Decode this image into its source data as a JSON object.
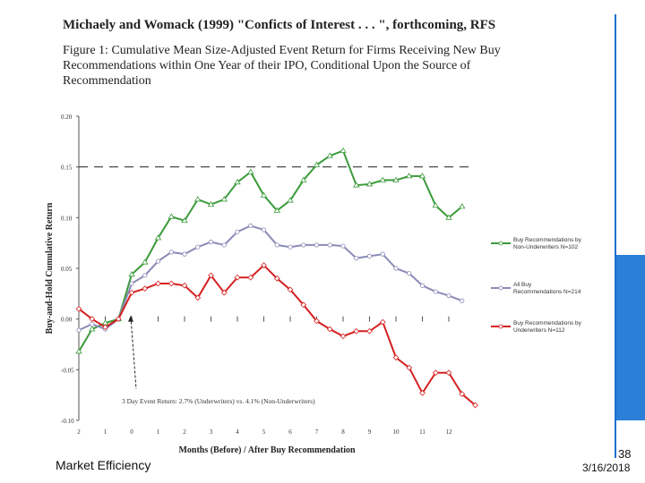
{
  "slide": {
    "title": "Michaely and Womack (1999) \"Conficts of Interest . . . \", forthcoming, RFS",
    "caption": "Figure 1: Cumulative Mean Size-Adjusted Event Return for Firms Receiving New Buy Recommendations within One Year of their IPO, Conditional Upon the Source of Recommendation",
    "footer_left": "Market Efficiency",
    "page_number": "38",
    "date": "3/16/2018"
  },
  "colors": {
    "accent": "#2b7fd6",
    "green": "#3a9a3a",
    "blue": "#8a8ab8",
    "red": "#d42020"
  },
  "chart_data": {
    "type": "line",
    "xlabel": "Months (Before) / After Buy Recommendation",
    "ylabel": "Buy-and-Hold Cumulative Return",
    "ylim": [
      -0.1,
      0.2
    ],
    "yticks": [
      -0.1,
      -0.05,
      0.0,
      0.05,
      0.1,
      0.15,
      0.2
    ],
    "ytick_labels": [
      "-0.10",
      "-0.05",
      "0.00",
      "0.05",
      "0.10",
      "0.15",
      "0.20"
    ],
    "xlim": [
      -2,
      12.5
    ],
    "x_ticks": [
      -2,
      -1,
      0,
      1,
      2,
      3,
      4,
      5,
      6,
      7,
      8,
      9,
      10,
      11,
      12
    ],
    "x_tick_labels": [
      "2",
      "1",
      "0",
      "1",
      "2",
      "3",
      "4",
      "5",
      "6",
      "7",
      "8",
      "9",
      "10",
      "11",
      "12"
    ],
    "reference_line": 0.15,
    "annotation": "3 Day Event Return: 2.7% (Underwriters) vs. 4.1% (Non-Underwriters)",
    "annotation_x": 0,
    "x": [
      -2,
      -1.5,
      -1,
      -0.5,
      0,
      0.5,
      1,
      1.5,
      2,
      2.5,
      3,
      3.5,
      4,
      4.5,
      5,
      5.5,
      6,
      6.5,
      7,
      7.5,
      8,
      8.5,
      9,
      9.5,
      10,
      10.5,
      11,
      11.5,
      12,
      12.5
    ],
    "series": [
      {
        "name": "Buy Recommendations by Non-Underwriters N=102",
        "color": "#3a9a3a",
        "marker": "triangle",
        "values": [
          -0.032,
          -0.01,
          -0.004,
          0.0,
          0.044,
          0.056,
          0.08,
          0.101,
          0.097,
          0.118,
          0.113,
          0.118,
          0.135,
          0.145,
          0.122,
          0.107,
          0.117,
          0.137,
          0.152,
          0.161,
          0.166,
          0.132,
          0.133,
          0.137,
          0.137,
          0.141,
          0.141,
          0.112,
          0.1,
          0.111
        ]
      },
      {
        "name": "All Buy Recommendations N=214",
        "color": "#8a8ab8",
        "marker": "circle",
        "values": [
          -0.011,
          -0.005,
          -0.01,
          0.0,
          0.035,
          0.043,
          0.057,
          0.066,
          0.064,
          0.071,
          0.076,
          0.073,
          0.086,
          0.092,
          0.088,
          0.073,
          0.071,
          0.073,
          0.073,
          0.073,
          0.072,
          0.06,
          0.062,
          0.064,
          0.05,
          0.045,
          0.033,
          0.027,
          0.023,
          0.018
        ]
      },
      {
        "name": "Buy Recommendations by Underwriters N=112",
        "color": "#d42020",
        "marker": "diamond",
        "values": [
          0.01,
          0.0,
          -0.008,
          0.0,
          0.026,
          0.03,
          0.035,
          0.035,
          0.033,
          0.021,
          0.043,
          0.026,
          0.041,
          0.041,
          0.053,
          0.04,
          0.029,
          0.014,
          -0.002,
          -0.01,
          -0.017,
          -0.012,
          -0.012,
          -0.003,
          -0.038,
          -0.048,
          -0.073,
          -0.053,
          -0.053,
          -0.074
        ]
      }
    ],
    "series_plot_values_note": "",
    "final_point": {
      "x": 13,
      "value": -0.085
    }
  }
}
